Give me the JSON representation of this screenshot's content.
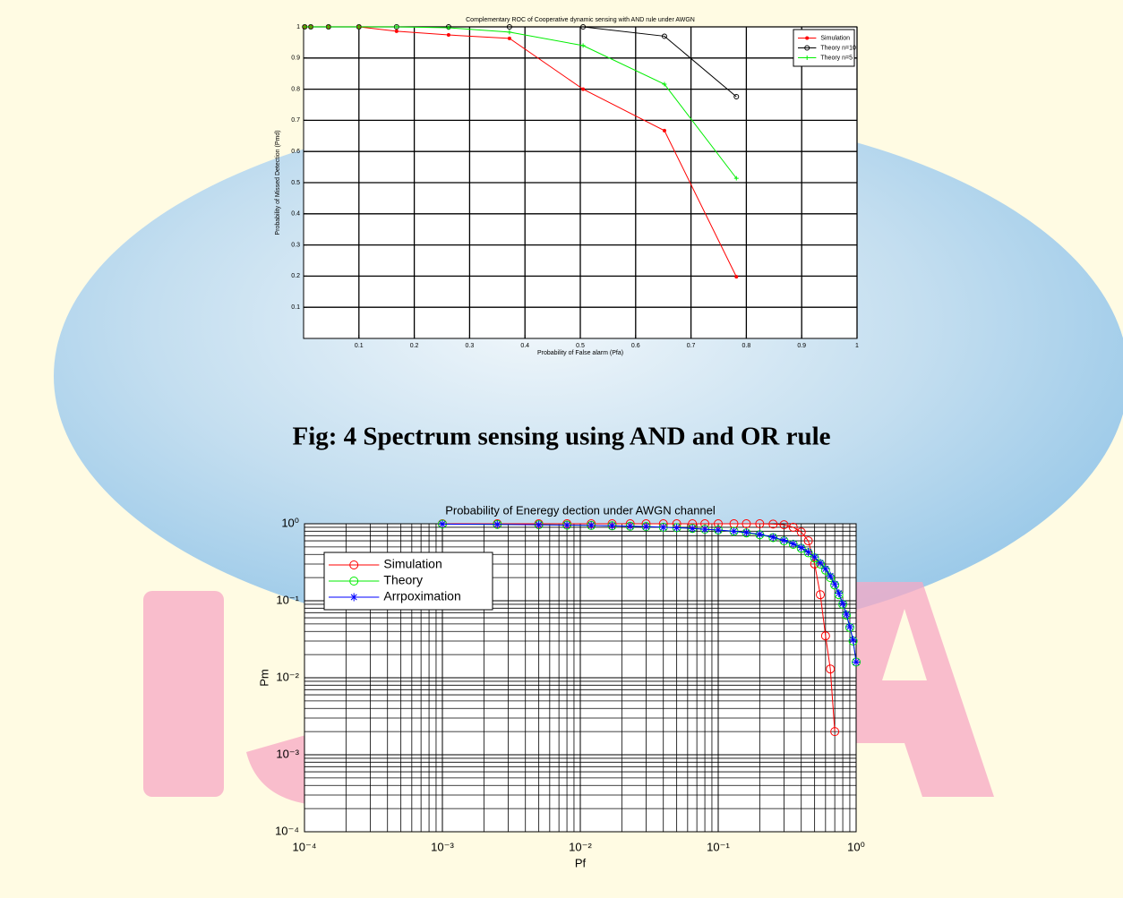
{
  "chart_data": [
    {
      "type": "line",
      "title": "Complementary ROC of Cooperative  dynamic sensing with AND rule under AWGN",
      "x_label": "Probability of False alarm (Pfa)",
      "y_label": "Probability of Missed Detection (Pmd)",
      "x": [
        0.002,
        0.013,
        0.045,
        0.1,
        0.168,
        0.262,
        0.372,
        0.505,
        0.652,
        0.782
      ],
      "series": [
        {
          "name": "Simulation",
          "color": "#ff0000",
          "marker": "dot",
          "values": [
            1,
            1,
            1,
            1,
            0.986,
            0.974,
            0.963,
            0.8,
            0.667,
            0.198
          ]
        },
        {
          "name": "Theory n=10",
          "color": "#000000",
          "marker": "circle",
          "values": [
            1,
            1,
            1,
            1,
            1,
            1,
            1,
            1,
            0.97,
            0.776
          ]
        },
        {
          "name": "Theory n=5",
          "color": "#00ee00",
          "marker": "plus",
          "values": [
            1,
            1,
            1,
            1,
            1,
            0.997,
            0.983,
            0.94,
            0.816,
            0.514
          ]
        }
      ],
      "xlim": [
        0,
        1
      ],
      "ylim": [
        0,
        1
      ],
      "xticks": [
        0.1,
        0.2,
        0.3,
        0.4,
        0.5,
        0.6,
        0.7,
        0.8,
        0.9,
        1
      ],
      "yticks": [
        0.1,
        0.2,
        0.3,
        0.4,
        0.5,
        0.6,
        0.7,
        0.8,
        0.9,
        1
      ],
      "grid": true,
      "log": false,
      "legend": "upper right"
    },
    {
      "type": "line",
      "title": "Probability of Eneregy dection under AWGN  channel",
      "x_label": "Pf",
      "y_label": "Pm",
      "x": [
        0.001,
        0.0025,
        0.005,
        0.008,
        0.012,
        0.017,
        0.023,
        0.03,
        0.04,
        0.05,
        0.065,
        0.08,
        0.1,
        0.13,
        0.16,
        0.2,
        0.25,
        0.3,
        0.35,
        0.4,
        0.45,
        0.5,
        0.55,
        0.6,
        0.65,
        0.7,
        0.75,
        0.8,
        0.85,
        0.9,
        0.95,
        1.0
      ],
      "series": [
        {
          "name": "Simulation",
          "color": "#ff0000",
          "marker": "circle",
          "values": [
            1,
            1,
            1,
            1,
            1,
            1,
            1,
            1,
            1,
            1,
            1,
            1,
            1,
            1,
            1,
            1,
            0.99,
            0.97,
            0.9,
            0.78,
            0.6,
            0.3,
            0.12,
            0.035,
            0.013,
            0.002,
            null,
            null,
            null,
            null,
            null,
            null
          ]
        },
        {
          "name": "Theory",
          "color": "#00ee00",
          "marker": "circle",
          "values": [
            0.99,
            0.98,
            0.97,
            0.96,
            0.95,
            0.94,
            0.93,
            0.92,
            0.9,
            0.89,
            0.87,
            0.85,
            0.83,
            0.8,
            0.76,
            0.72,
            0.66,
            0.6,
            0.54,
            0.48,
            0.42,
            0.36,
            0.3,
            0.25,
            0.2,
            0.16,
            0.12,
            0.09,
            0.065,
            0.045,
            0.03,
            0.016
          ]
        },
        {
          "name": "Arrpoximation",
          "color": "#0000ff",
          "marker": "star",
          "values": [
            0.99,
            0.98,
            0.97,
            0.96,
            0.95,
            0.94,
            0.93,
            0.92,
            0.9,
            0.89,
            0.87,
            0.85,
            0.83,
            0.8,
            0.77,
            0.73,
            0.67,
            0.61,
            0.55,
            0.49,
            0.43,
            0.37,
            0.31,
            0.26,
            0.21,
            0.165,
            0.125,
            0.092,
            0.067,
            0.046,
            0.031,
            0.016
          ]
        }
      ],
      "xlim": [
        0.0001,
        1
      ],
      "ylim": [
        0.0001,
        1
      ],
      "xticks": [
        {
          "value": 0.0001,
          "label": "10⁻⁴"
        },
        {
          "value": 0.001,
          "label": "10⁻³"
        },
        {
          "value": 0.01,
          "label": "10⁻²"
        },
        {
          "value": 0.1,
          "label": "10⁻¹"
        },
        {
          "value": 1,
          "label": "10⁰"
        }
      ],
      "yticks": [
        {
          "value": 0.0001,
          "label": "10⁻⁴"
        },
        {
          "value": 0.001,
          "label": "10⁻³"
        },
        {
          "value": 0.01,
          "label": "10⁻²"
        },
        {
          "value": 0.1,
          "label": "10⁻¹"
        },
        {
          "value": 1,
          "label": "10⁰"
        }
      ],
      "grid": true,
      "minor_grid": true,
      "log": true,
      "legend": "upper left"
    }
  ],
  "caption": "Fig: 4 Spectrum sensing using AND and OR rule"
}
